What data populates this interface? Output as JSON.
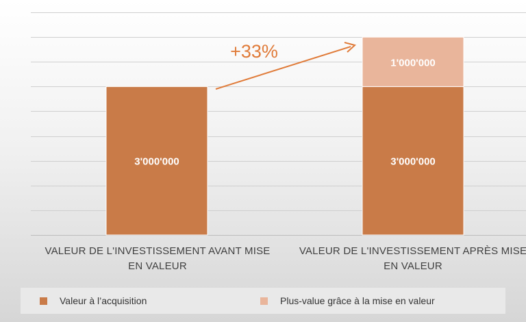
{
  "chart_data": {
    "type": "bar",
    "stacked": true,
    "categories": [
      "VALEUR DE L'INVESTISSEMENT AVANT MISE\nEN VALEUR",
      "VALEUR DE L'INVESTISSEMENT APRÈS MISE\nEN VALEUR"
    ],
    "series": [
      {
        "name": "Valeur à l’acquisition",
        "values": [
          3000000,
          3000000
        ],
        "labels": [
          "3'000'000",
          "3'000'000"
        ],
        "color": "#c97b48"
      },
      {
        "name": "Plus-value grâce à la mise en valeur",
        "values": [
          null,
          1000000
        ],
        "labels": [
          null,
          "1'000'000"
        ],
        "color": "#e9b59b"
      }
    ],
    "ylim": [
      0,
      4750000
    ],
    "y_step": 500000,
    "grid": true,
    "legend_position": "bottom",
    "annotation": {
      "text": "+33%",
      "color": "#e07b39"
    }
  }
}
